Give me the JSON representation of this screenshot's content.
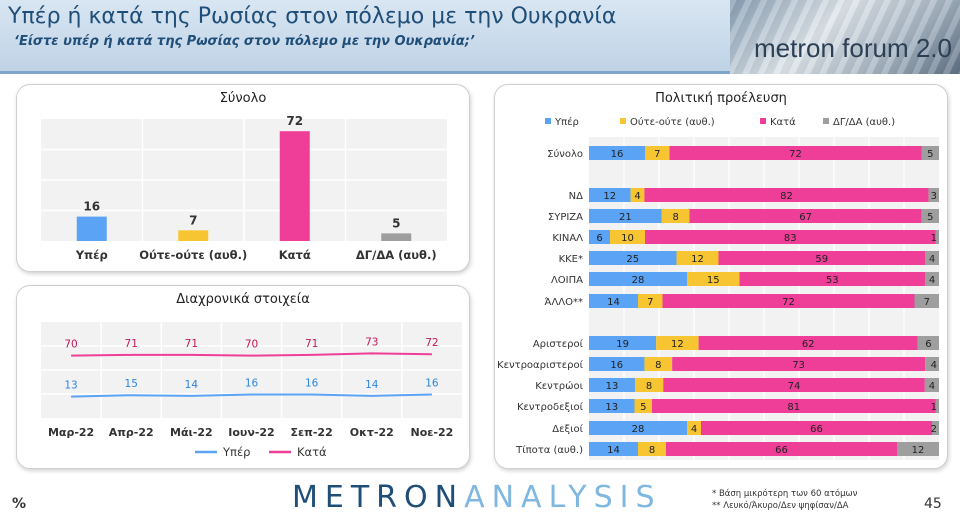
{
  "header": {
    "title": "Υπέρ ή κατά της Ρωσίας στον πόλεμο με την Ουκρανία",
    "subtitle": "‘Είστε υπέρ ή κατά της Ρωσίας στον πόλεμο με την Ουκρανία;’",
    "logo": "metron forum 2.0"
  },
  "footer": {
    "unit": "%",
    "brand_a": "METRON",
    "brand_b": "ANALYSIS",
    "note1": "*  Βάση μικρότερη των 60 ατόμων",
    "note2": "** Λευκό/Άκυρο/Δεν ψηφίσαν/ΔΑ",
    "page": "45"
  },
  "colors": {
    "yper": "#5ba3f5",
    "oute": "#f7c531",
    "kata": "#ee3e98",
    "dg": "#9e9e9e"
  },
  "chart_data": [
    {
      "type": "bar",
      "title": "Σύνολο",
      "categories": [
        "Υπέρ",
        "Ούτε-ούτε (αυθ.)",
        "Κατά",
        "ΔΓ/ΔΑ (αυθ.)"
      ],
      "values": [
        16,
        7,
        72,
        5
      ],
      "ylim": [
        0,
        80
      ],
      "grid": true
    },
    {
      "type": "line",
      "title": "Διαχρονικά στοιχεία",
      "x": [
        "Μαρ-22",
        "Απρ-22",
        "Μάι-22",
        "Ιουν-22",
        "Σεπ-22",
        "Οκτ-22",
        "Νοε-22"
      ],
      "series": [
        {
          "name": "Υπέρ",
          "values": [
            13,
            15,
            14,
            16,
            16,
            14,
            16
          ]
        },
        {
          "name": "Κατά",
          "values": [
            70,
            71,
            71,
            70,
            71,
            73,
            72
          ]
        }
      ],
      "legend": "bottom",
      "grid": true
    },
    {
      "type": "bar",
      "stacked": true,
      "orientation": "horizontal",
      "title": "Πολιτική προέλευση",
      "legend": "top",
      "xlim": [
        0,
        100
      ],
      "series_names": [
        "Υπέρ",
        "Ούτε-ούτε (αυθ.)",
        "Κατά",
        "ΔΓ/ΔΑ (αυθ.)"
      ],
      "rows": [
        {
          "label": "Σύνολο",
          "values": [
            16,
            7,
            72,
            5
          ]
        },
        {
          "label": "ΝΔ",
          "values": [
            12,
            4,
            82,
            3
          ]
        },
        {
          "label": "ΣΥΡΙΖΑ",
          "values": [
            21,
            8,
            67,
            5
          ]
        },
        {
          "label": "ΚΙΝΑΛ",
          "values": [
            6,
            10,
            83,
            1
          ]
        },
        {
          "label": "ΚΚΕ*",
          "values": [
            25,
            12,
            59,
            4
          ]
        },
        {
          "label": "ΛΟΙΠΑ",
          "values": [
            28,
            15,
            53,
            4
          ]
        },
        {
          "label": "ΆΛΛΟ**",
          "values": [
            14,
            7,
            72,
            7
          ]
        },
        {
          "label": "Αριστεροί",
          "values": [
            19,
            12,
            62,
            6
          ]
        },
        {
          "label": "Κεντροαριστεροί",
          "values": [
            16,
            8,
            73,
            4
          ]
        },
        {
          "label": "Κεντρώοι",
          "values": [
            13,
            8,
            74,
            4
          ]
        },
        {
          "label": "Κεντροδεξιοί",
          "values": [
            13,
            5,
            81,
            1
          ]
        },
        {
          "label": "Δεξιοί",
          "values": [
            28,
            4,
            66,
            2
          ]
        },
        {
          "label": "Τίποτα (αυθ.)",
          "values": [
            14,
            8,
            66,
            12
          ]
        }
      ]
    }
  ]
}
